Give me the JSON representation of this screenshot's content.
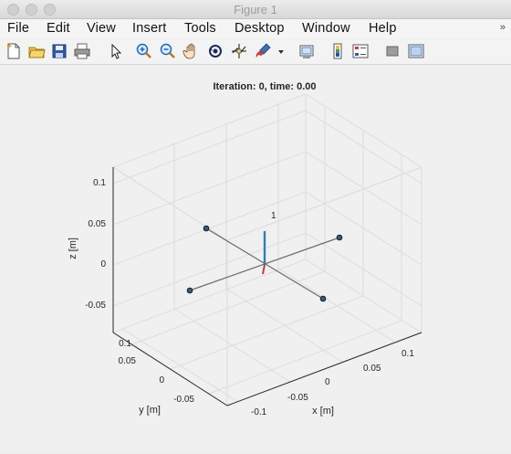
{
  "window": {
    "title": "Figure 1"
  },
  "menu": {
    "items": [
      "File",
      "Edit",
      "View",
      "Insert",
      "Tools",
      "Desktop",
      "Window",
      "Help"
    ],
    "overflow_glyph": "»"
  },
  "toolbar": {
    "icons": [
      "new-figure-icon",
      "open-file-icon",
      "save-icon",
      "print-icon",
      "pointer-icon",
      "zoom-in-icon",
      "zoom-out-icon",
      "pan-hand-icon",
      "rotate-3d-icon",
      "data-cursor-icon",
      "brush-icon",
      "brush-dropdown-icon",
      "link-plot-icon",
      "insert-colorbar-icon",
      "insert-legend-icon",
      "hide-plot-tools-icon",
      "show-plot-tools-icon"
    ]
  },
  "plot": {
    "title": "Iteration: 0, time: 0.00",
    "xlabel": "x [m]",
    "ylabel": "y [m]",
    "zlabel": "z [m]",
    "x_ticks": [
      "-0.1",
      "-0.05",
      "0",
      "0.05",
      "0.1"
    ],
    "y_ticks": [
      "0.1",
      "0.05",
      "0",
      "-0.05"
    ],
    "z_ticks": [
      "0.1",
      "0.05",
      "0",
      "-0.05"
    ],
    "annotation": "1",
    "colors": {
      "arm": "#6b6b6b",
      "motor_marker": "#1f3a56",
      "z_axis_body": "#2f7fb4",
      "x_axis_body": "#c33c3c"
    }
  },
  "chart_data": {
    "type": "scatter",
    "title": "Iteration: 0, time: 0.00",
    "xlabel": "x [m]",
    "ylabel": "y [m]",
    "zlabel": "z [m]",
    "xlim": [
      -0.13,
      0.13
    ],
    "ylim": [
      -0.1,
      0.13
    ],
    "zlim": [
      -0.08,
      0.12
    ],
    "grid": true,
    "series": [
      {
        "points": [
          [
            0.08,
            0.04,
            0
          ],
          [
            -0.08,
            -0.04,
            0
          ],
          [
            0.04,
            -0.08,
            0
          ],
          [
            -0.04,
            0.08,
            0
          ]
        ]
      }
    ],
    "annotations": [
      {
        "text": "1",
        "x": 0,
        "y": 0,
        "z": 0.05
      }
    ]
  }
}
